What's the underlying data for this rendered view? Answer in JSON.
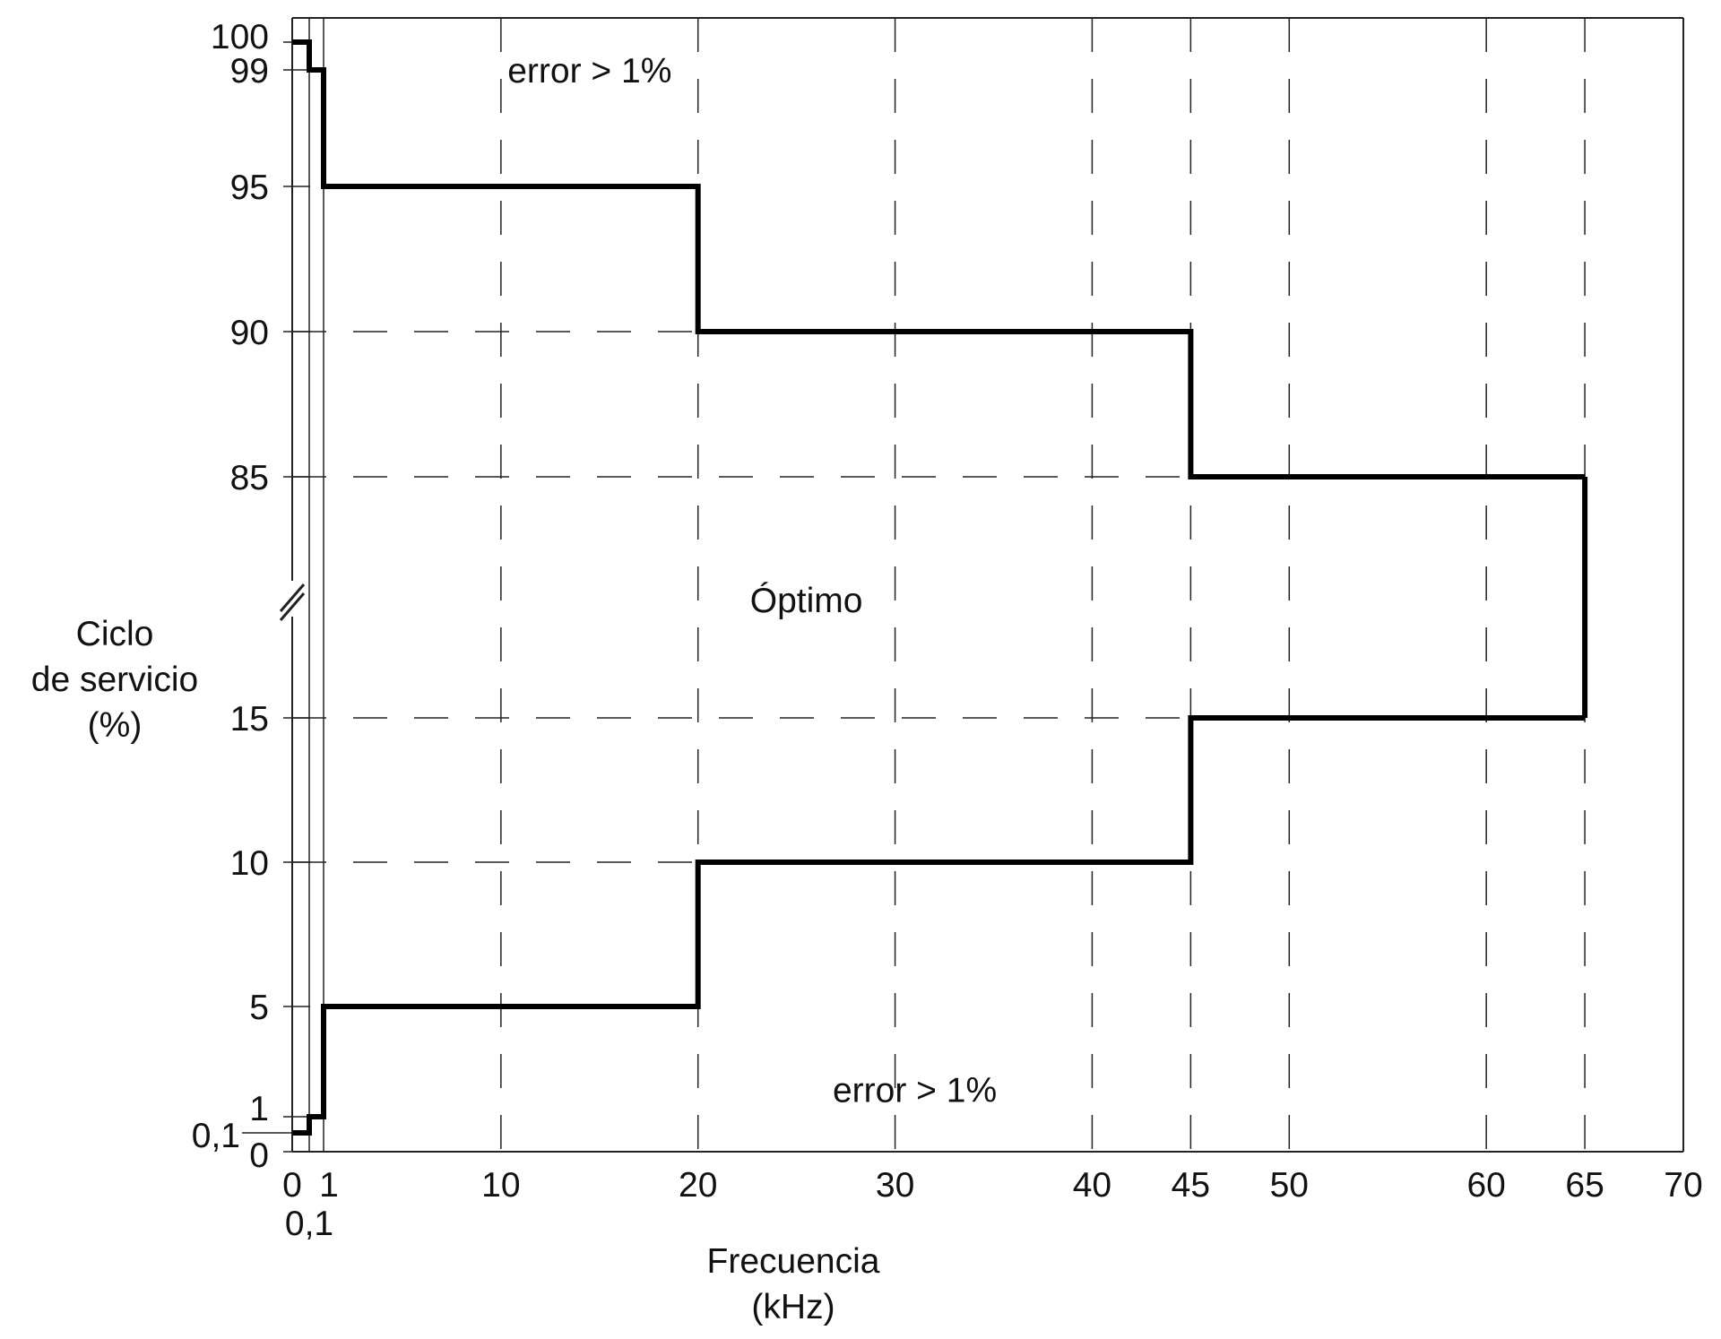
{
  "chart_data": {
    "type": "line",
    "xlabel": [
      "Frecuencia",
      "(kHz)"
    ],
    "ylabel": [
      "Ciclo",
      "de servicio",
      "(%)"
    ],
    "x_ticks": [
      {
        "value": 0,
        "label": "0"
      },
      {
        "value": 0.1,
        "label": "0,1"
      },
      {
        "value": 1,
        "label": "1"
      },
      {
        "value": 10,
        "label": "10"
      },
      {
        "value": 20,
        "label": "20"
      },
      {
        "value": 30,
        "label": "30"
      },
      {
        "value": 40,
        "label": "40"
      },
      {
        "value": 45,
        "label": "45"
      },
      {
        "value": 50,
        "label": "50"
      },
      {
        "value": 60,
        "label": "60"
      },
      {
        "value": 65,
        "label": "65"
      },
      {
        "value": 70,
        "label": "70"
      }
    ],
    "y_ticks": [
      {
        "value": 0,
        "label": "0"
      },
      {
        "value": 0.1,
        "label": "0,1"
      },
      {
        "value": 1,
        "label": "1"
      },
      {
        "value": 5,
        "label": "5"
      },
      {
        "value": 10,
        "label": "10"
      },
      {
        "value": 15,
        "label": "15"
      },
      {
        "value": 85,
        "label": "85"
      },
      {
        "value": 90,
        "label": "90"
      },
      {
        "value": 95,
        "label": "95"
      },
      {
        "value": 99,
        "label": "99"
      },
      {
        "value": 100,
        "label": "100"
      }
    ],
    "xlim": [
      0,
      70
    ],
    "y_axis_break": [
      15,
      85
    ],
    "series": [
      {
        "x": [
          0,
          0.1,
          0.1,
          1,
          1,
          20,
          20,
          45,
          45,
          65
        ],
        "y": [
          100,
          100,
          99,
          99,
          95,
          95,
          90,
          90,
          85,
          85
        ]
      },
      {
        "x": [
          0,
          0.1,
          0.1,
          1,
          1,
          20,
          20,
          45,
          45,
          65
        ],
        "y": [
          0.1,
          0.1,
          1,
          1,
          5,
          5,
          10,
          10,
          15,
          15
        ]
      },
      {
        "x": [
          65,
          65
        ],
        "y": [
          85,
          15
        ]
      }
    ],
    "annotations": [
      {
        "text": "error > 1%",
        "x": 14.5,
        "y": 99
      },
      {
        "text": "Óptimo",
        "x": 25.5,
        "y": 50
      },
      {
        "text": "error > 1%",
        "x": 31,
        "y": 2
      }
    ],
    "grid": true
  }
}
